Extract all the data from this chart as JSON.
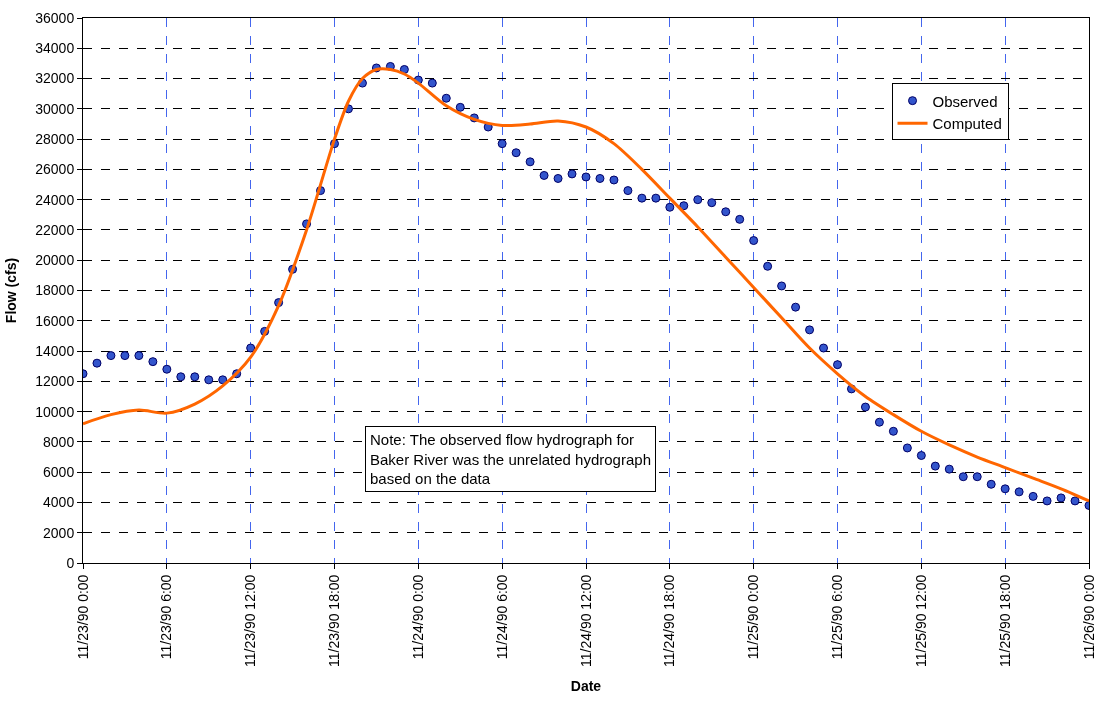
{
  "chart_data": {
    "type": "scatter",
    "xlabel": "Date",
    "ylabel": "Flow (cfs)",
    "xlim": [
      "1990-11-23T00:00",
      "1990-11-26T00:00"
    ],
    "xticks": [
      {
        "value": "1990-11-23T00:00",
        "label": "11/23/90 0:00"
      },
      {
        "value": "1990-11-23T06:00",
        "label": "11/23/90 6:00"
      },
      {
        "value": "1990-11-23T12:00",
        "label": "11/23/90 12:00"
      },
      {
        "value": "1990-11-23T18:00",
        "label": "11/23/90 18:00"
      },
      {
        "value": "1990-11-24T00:00",
        "label": "11/24/90 0:00"
      },
      {
        "value": "1990-11-24T06:00",
        "label": "11/24/90 6:00"
      },
      {
        "value": "1990-11-24T12:00",
        "label": "11/24/90 12:00"
      },
      {
        "value": "1990-11-24T18:00",
        "label": "11/24/90 18:00"
      },
      {
        "value": "1990-11-25T00:00",
        "label": "11/25/90 0:00"
      },
      {
        "value": "1990-11-25T06:00",
        "label": "11/25/90 6:00"
      },
      {
        "value": "1990-11-25T12:00",
        "label": "11/25/90 12:00"
      },
      {
        "value": "1990-11-25T18:00",
        "label": "11/25/90 18:00"
      },
      {
        "value": "1990-11-26T00:00",
        "label": "11/26/90 0:00"
      }
    ],
    "ylim": [
      0,
      36000
    ],
    "yticks": [
      0,
      2000,
      4000,
      6000,
      8000,
      10000,
      12000,
      14000,
      16000,
      18000,
      20000,
      22000,
      24000,
      26000,
      28000,
      30000,
      32000,
      34000,
      36000
    ],
    "grid": true,
    "legend": "top right",
    "series": [
      {
        "name": "Observed",
        "marker": "circle",
        "color": "#3355cc",
        "x": [
          "1990-11-23T00:00",
          "1990-11-23T01:00",
          "1990-11-23T02:00",
          "1990-11-23T03:00",
          "1990-11-23T04:00",
          "1990-11-23T05:00",
          "1990-11-23T06:00",
          "1990-11-23T07:00",
          "1990-11-23T08:00",
          "1990-11-23T09:00",
          "1990-11-23T10:00",
          "1990-11-23T11:00",
          "1990-11-23T12:00",
          "1990-11-23T13:00",
          "1990-11-23T14:00",
          "1990-11-23T15:00",
          "1990-11-23T16:00",
          "1990-11-23T17:00",
          "1990-11-23T18:00",
          "1990-11-23T19:00",
          "1990-11-23T20:00",
          "1990-11-23T21:00",
          "1990-11-23T22:00",
          "1990-11-23T23:00",
          "1990-11-24T00:00",
          "1990-11-24T01:00",
          "1990-11-24T02:00",
          "1990-11-24T03:00",
          "1990-11-24T04:00",
          "1990-11-24T05:00",
          "1990-11-24T06:00",
          "1990-11-24T07:00",
          "1990-11-24T08:00",
          "1990-11-24T09:00",
          "1990-11-24T10:00",
          "1990-11-24T11:00",
          "1990-11-24T12:00",
          "1990-11-24T13:00",
          "1990-11-24T14:00",
          "1990-11-24T15:00",
          "1990-11-24T16:00",
          "1990-11-24T17:00",
          "1990-11-24T18:00",
          "1990-11-24T19:00",
          "1990-11-24T20:00",
          "1990-11-24T21:00",
          "1990-11-24T22:00",
          "1990-11-24T23:00",
          "1990-11-25T00:00",
          "1990-11-25T01:00",
          "1990-11-25T02:00",
          "1990-11-25T03:00",
          "1990-11-25T04:00",
          "1990-11-25T05:00",
          "1990-11-25T06:00",
          "1990-11-25T07:00",
          "1990-11-25T08:00",
          "1990-11-25T09:00",
          "1990-11-25T10:00",
          "1990-11-25T11:00",
          "1990-11-25T12:00",
          "1990-11-25T13:00",
          "1990-11-25T14:00",
          "1990-11-25T15:00",
          "1990-11-25T16:00",
          "1990-11-25T17:00",
          "1990-11-25T18:00",
          "1990-11-25T19:00",
          "1990-11-25T20:00",
          "1990-11-25T21:00",
          "1990-11-25T22:00",
          "1990-11-25T23:00",
          "1990-11-26T00:00"
        ],
        "values": [
          12500,
          13200,
          13700,
          13700,
          13700,
          13300,
          12800,
          12300,
          12300,
          12100,
          12100,
          12500,
          14200,
          15300,
          17200,
          19400,
          22400,
          24600,
          27700,
          30000,
          31700,
          32700,
          32800,
          32600,
          31900,
          31700,
          30700,
          30100,
          29400,
          28800,
          27700,
          27100,
          26500,
          25600,
          25400,
          25700,
          25500,
          25400,
          25300,
          24600,
          24100,
          24100,
          23500,
          23600,
          24000,
          23800,
          23200,
          22700,
          21300,
          19600,
          18300,
          16900,
          15400,
          14200,
          13100,
          11500,
          10300,
          9300,
          8700,
          7600,
          7100,
          6400,
          6200,
          5700,
          5700,
          5200,
          4900,
          4700,
          4400,
          4100,
          4300,
          4100,
          3800
        ]
      },
      {
        "name": "Computed",
        "type": "line",
        "marker": "none",
        "line_style": "solid",
        "color": "#ff6600",
        "x": [
          "1990-11-23T00:00",
          "1990-11-23T02:00",
          "1990-11-23T04:00",
          "1990-11-23T06:00",
          "1990-11-23T08:00",
          "1990-11-23T10:00",
          "1990-11-23T12:00",
          "1990-11-23T14:00",
          "1990-11-23T16:00",
          "1990-11-23T18:00",
          "1990-11-23T19:00",
          "1990-11-23T20:00",
          "1990-11-23T21:00",
          "1990-11-23T22:00",
          "1990-11-23T23:00",
          "1990-11-24T00:00",
          "1990-11-24T02:00",
          "1990-11-24T04:00",
          "1990-11-24T06:00",
          "1990-11-24T08:00",
          "1990-11-24T10:00",
          "1990-11-24T12:00",
          "1990-11-24T14:00",
          "1990-11-24T16:00",
          "1990-11-24T18:00",
          "1990-11-24T20:00",
          "1990-11-24T22:00",
          "1990-11-25T00:00",
          "1990-11-25T02:00",
          "1990-11-25T04:00",
          "1990-11-25T06:00",
          "1990-11-25T08:00",
          "1990-11-25T10:00",
          "1990-11-25T12:00",
          "1990-11-25T14:00",
          "1990-11-25T16:00",
          "1990-11-25T18:00",
          "1990-11-25T20:00",
          "1990-11-25T22:00",
          "1990-11-26T00:00"
        ],
        "values": [
          9200,
          9800,
          10100,
          9900,
          10500,
          11700,
          13600,
          17000,
          22000,
          28000,
          30500,
          32000,
          32600,
          32600,
          32300,
          31700,
          30200,
          29300,
          28900,
          29000,
          29200,
          28800,
          27700,
          26000,
          24100,
          22200,
          20200,
          18200,
          16200,
          14200,
          12500,
          11000,
          9800,
          8700,
          7800,
          7000,
          6300,
          5600,
          4900,
          4100
        ]
      }
    ],
    "annotations": [
      "Note: The observed flow hydrograph for\nBaker River was the unrelated hydrograph\nbased on the data"
    ]
  }
}
